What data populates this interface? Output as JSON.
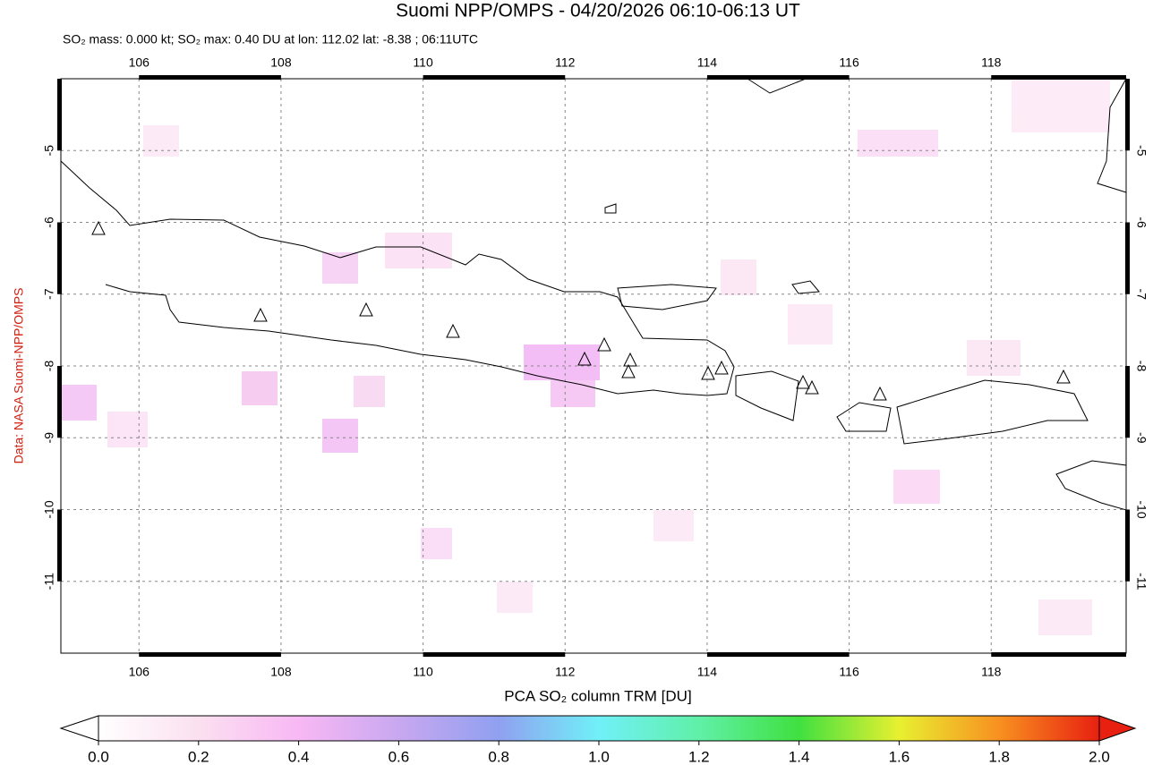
{
  "title": "Suomi NPP/OMPS - 04/20/2026 06:10-06:13 UT",
  "subtitle": "SO₂ mass: 0.000 kt; SO₂ max: 0.40 DU at lon: 112.02 lat: -8.38 ; 06:11UTC",
  "credit": "Data: NASA Suomi-NPP/OMPS",
  "map": {
    "lon_range": [
      104.9,
      119.9
    ],
    "lat_range": [
      -12,
      -4
    ],
    "lon_ticks": [
      106,
      108,
      110,
      112,
      114,
      116,
      118
    ],
    "lat_ticks": [
      -5,
      -6,
      -7,
      -8,
      -9,
      -10,
      -11
    ]
  },
  "colorbar": {
    "label": "PCA SO₂ column TRM [DU]",
    "range": [
      0,
      2
    ],
    "ticks": [
      {
        "value": 0,
        "label": "0.0"
      },
      {
        "value": 0.2,
        "label": "0.2"
      },
      {
        "value": 0.4,
        "label": "0.4"
      },
      {
        "value": 0.6,
        "label": "0.6"
      },
      {
        "value": 0.8,
        "label": "0.8"
      },
      {
        "value": 1,
        "label": "1.0"
      },
      {
        "value": 1.2,
        "label": "1.2"
      },
      {
        "value": 1.4,
        "label": "1.4"
      },
      {
        "value": 1.6,
        "label": "1.6"
      },
      {
        "value": 1.8,
        "label": "1.8"
      },
      {
        "value": 2,
        "label": "2.0"
      }
    ]
  }
}
